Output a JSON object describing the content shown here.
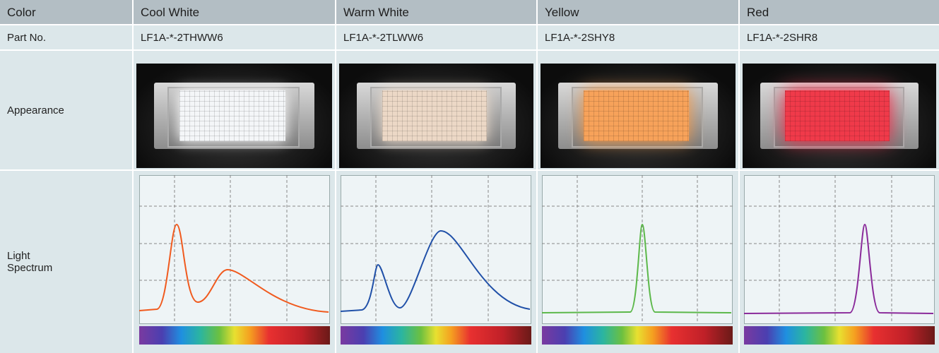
{
  "table": {
    "header": [
      "Color",
      "Cool White",
      "Warm White",
      "Yellow",
      "Red"
    ],
    "rows": [
      [
        "Part No.",
        "LF1A-*-2THWW6",
        "LF1A-*-2TLWW6",
        "LF1A-*-2SHY8",
        "LF1A-*-2SHR8"
      ],
      [
        "Appearance"
      ],
      [
        "Light Spectrum"
      ]
    ]
  }
}
